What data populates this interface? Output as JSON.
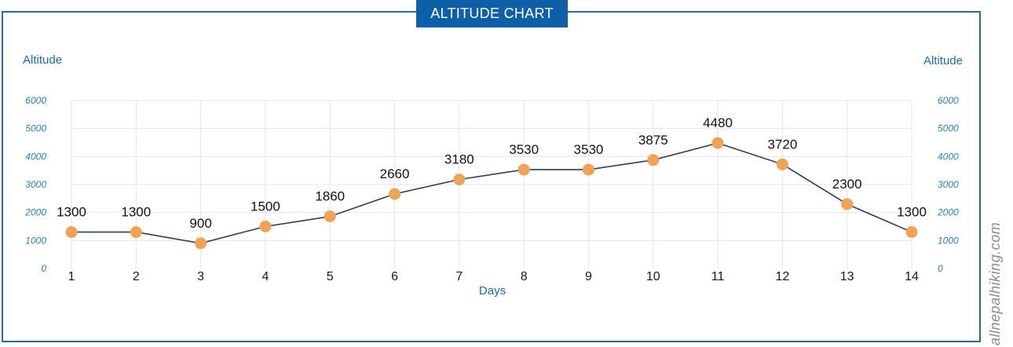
{
  "header": {
    "title": "ALTITUDE CHART"
  },
  "watermark": "allnepalhiking.com",
  "colors": {
    "frame": "#2a6b8c",
    "banner": "#0d5fa8",
    "line": "#2c3e5c",
    "marker": "#f0a352",
    "grid": "#e3e6ef",
    "tick": "#2a83b0"
  },
  "chart_data": {
    "type": "line",
    "title": "ALTITUDE CHART",
    "xlabel": "Days",
    "ylabel": "Altitude",
    "ylabel_right": "Altitude",
    "categories": [
      "1",
      "2",
      "3",
      "4",
      "5",
      "6",
      "7",
      "8",
      "9",
      "10",
      "11",
      "12",
      "13",
      "14"
    ],
    "values": [
      1300,
      1300,
      900,
      1500,
      1860,
      2660,
      3180,
      3530,
      3530,
      3875,
      4480,
      3720,
      2300,
      1300
    ],
    "data_labels": [
      "1300",
      "1300",
      "900",
      "1500",
      "1860",
      "2660",
      "3180",
      "3530",
      "3530",
      "3875",
      "4480",
      "3720",
      "2300",
      "1300"
    ],
    "yticks": [
      "0",
      "1000",
      "2000",
      "3000",
      "4000",
      "5000",
      "6000"
    ],
    "ylim": [
      0,
      6000
    ],
    "grid": true,
    "legend": "none"
  }
}
